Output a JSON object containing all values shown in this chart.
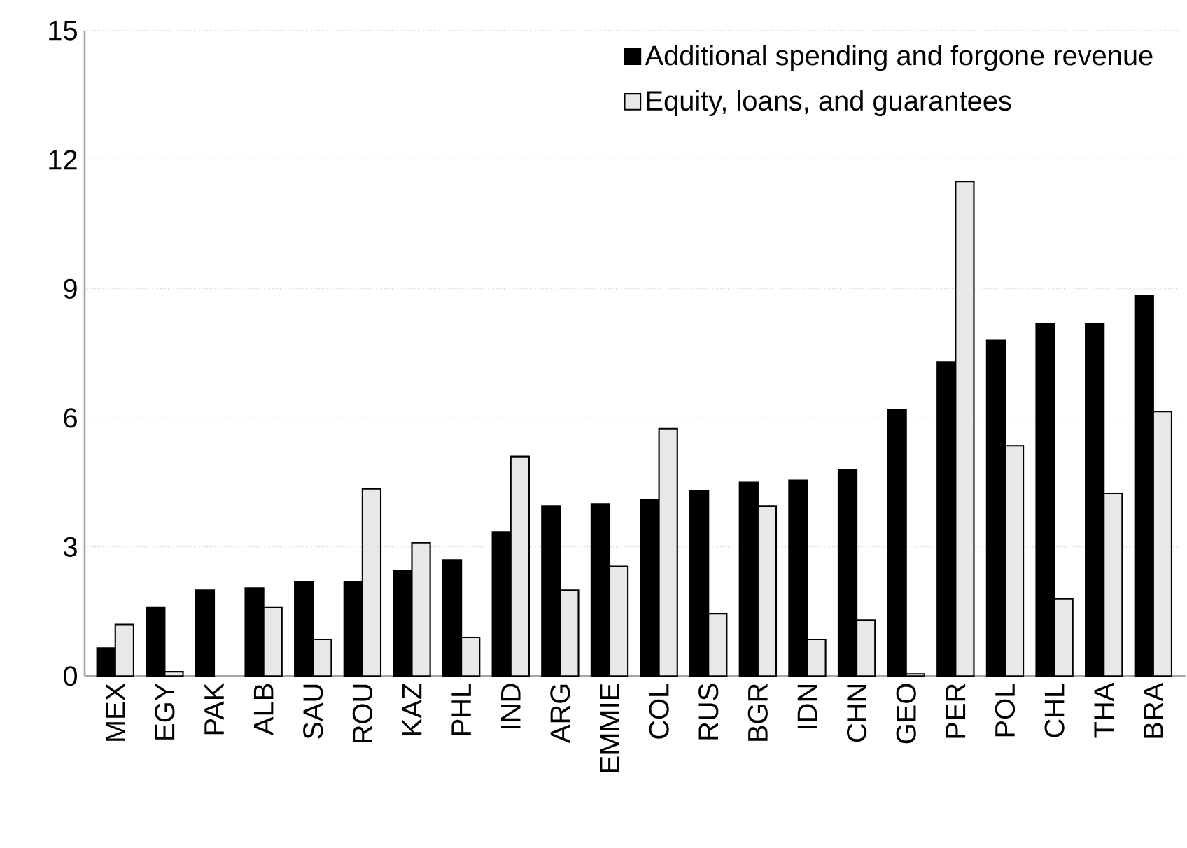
{
  "chart_data": {
    "type": "bar",
    "categories": [
      "MEX",
      "EGY",
      "PAK",
      "ALB",
      "SAU",
      "ROU",
      "KAZ",
      "PHL",
      "IND",
      "ARG",
      "EMMIE",
      "COL",
      "RUS",
      "BGR",
      "IDN",
      "CHN",
      "GEO",
      "PER",
      "POL",
      "CHL",
      "THA",
      "BRA"
    ],
    "series": [
      {
        "name": "Additional spending and forgone revenue",
        "color": "#000000",
        "values": [
          0.65,
          1.6,
          2.0,
          2.05,
          2.2,
          2.2,
          2.45,
          2.7,
          3.35,
          3.95,
          4.0,
          4.1,
          4.3,
          4.5,
          4.55,
          4.8,
          6.2,
          7.3,
          7.8,
          8.2,
          8.2,
          8.85
        ]
      },
      {
        "name": "Equity, loans, and guarantees",
        "color": "#e8e8e8",
        "values": [
          1.2,
          0.1,
          null,
          1.6,
          0.85,
          4.35,
          3.1,
          0.9,
          5.1,
          2.0,
          2.55,
          5.75,
          1.45,
          3.95,
          0.85,
          1.3,
          0.05,
          11.5,
          5.35,
          1.8,
          4.25,
          6.15
        ]
      }
    ],
    "ylim": [
      0,
      15
    ],
    "yticks": [
      0,
      3,
      6,
      9,
      12,
      15
    ],
    "grid": "y",
    "legend": "top right"
  }
}
